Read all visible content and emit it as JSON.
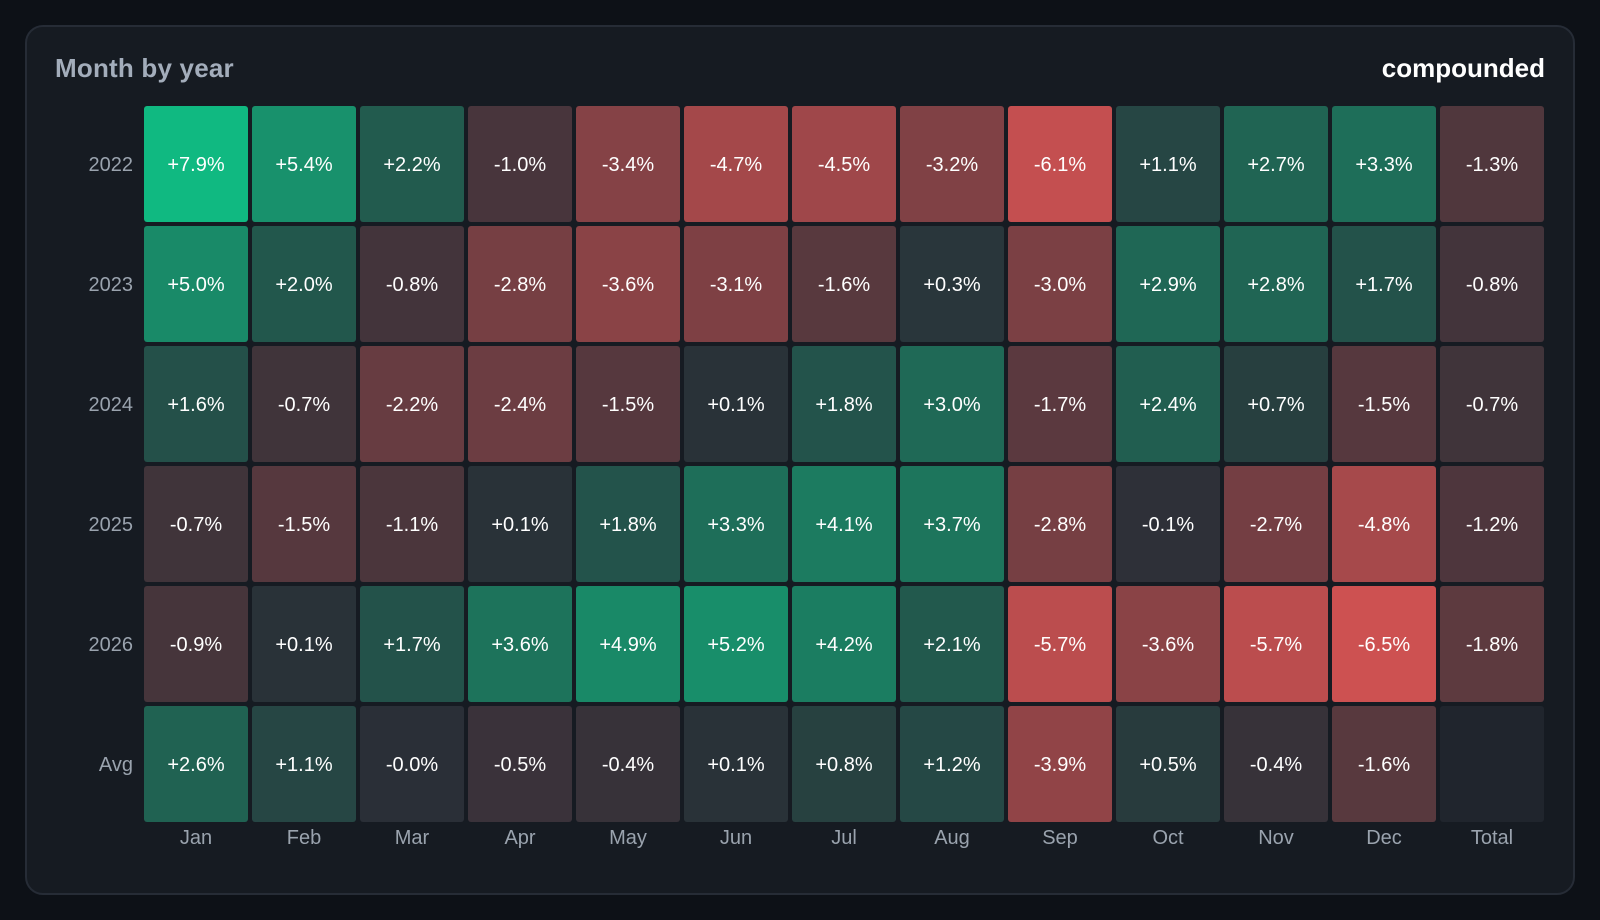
{
  "panel": {
    "title": "Month by year",
    "mode": "compounded"
  },
  "colors": {
    "background": "#0d1117",
    "panel": "#161b22",
    "neutral": "#2a2f37",
    "positive": "#10b981",
    "negative": "#cd5151",
    "text": "#ffffff",
    "axis_text": "#9aa3ae"
  },
  "chart_data": {
    "type": "heatmap",
    "title": "Month by year",
    "subtitle": "compounded",
    "columns": [
      "Jan",
      "Feb",
      "Mar",
      "Apr",
      "May",
      "Jun",
      "Jul",
      "Aug",
      "Sep",
      "Oct",
      "Nov",
      "Dec",
      "Total"
    ],
    "rows": [
      "2022",
      "2023",
      "2024",
      "2025",
      "2026",
      "Avg"
    ],
    "values": [
      [
        7.9,
        5.4,
        2.2,
        -1.0,
        -3.4,
        -4.7,
        -4.5,
        -3.2,
        -6.1,
        1.1,
        2.7,
        3.3,
        -1.3
      ],
      [
        5.0,
        2.0,
        -0.8,
        -2.8,
        -3.6,
        -3.1,
        -1.6,
        0.3,
        -3.0,
        2.9,
        2.8,
        1.7,
        -0.8
      ],
      [
        1.6,
        -0.7,
        -2.2,
        -2.4,
        -1.5,
        0.1,
        1.8,
        3.0,
        -1.7,
        2.4,
        0.7,
        -1.5,
        -0.7
      ],
      [
        -0.7,
        -1.5,
        -1.1,
        0.1,
        1.8,
        3.3,
        4.1,
        3.7,
        -2.8,
        -0.1,
        -2.7,
        -4.8,
        -1.2
      ],
      [
        -0.9,
        0.1,
        1.7,
        3.6,
        4.9,
        5.2,
        4.2,
        2.1,
        -5.7,
        -3.6,
        -5.7,
        -6.5,
        -1.8
      ],
      [
        2.6,
        1.1,
        -0.0,
        -0.5,
        -0.4,
        0.1,
        0.8,
        1.2,
        -3.9,
        0.5,
        -0.4,
        -1.6,
        null
      ]
    ],
    "labels": [
      [
        "+7.9%",
        "+5.4%",
        "+2.2%",
        "-1.0%",
        "-3.4%",
        "-4.7%",
        "-4.5%",
        "-3.2%",
        "-6.1%",
        "+1.1%",
        "+2.7%",
        "+3.3%",
        "-1.3%"
      ],
      [
        "+5.0%",
        "+2.0%",
        "-0.8%",
        "-2.8%",
        "-3.6%",
        "-3.1%",
        "-1.6%",
        "+0.3%",
        "-3.0%",
        "+2.9%",
        "+2.8%",
        "+1.7%",
        "-0.8%"
      ],
      [
        "+1.6%",
        "-0.7%",
        "-2.2%",
        "-2.4%",
        "-1.5%",
        "+0.1%",
        "+1.8%",
        "+3.0%",
        "-1.7%",
        "+2.4%",
        "+0.7%",
        "-1.5%",
        "-0.7%"
      ],
      [
        "-0.7%",
        "-1.5%",
        "-1.1%",
        "+0.1%",
        "+1.8%",
        "+3.3%",
        "+4.1%",
        "+3.7%",
        "-2.8%",
        "-0.1%",
        "-2.7%",
        "-4.8%",
        "-1.2%"
      ],
      [
        "-0.9%",
        "+0.1%",
        "+1.7%",
        "+3.6%",
        "+4.9%",
        "+5.2%",
        "+4.2%",
        "+2.1%",
        "-5.7%",
        "-3.6%",
        "-5.7%",
        "-6.5%",
        "-1.8%"
      ],
      [
        "+2.6%",
        "+1.1%",
        "-0.0%",
        "-0.5%",
        "-0.4%",
        "+0.1%",
        "+0.8%",
        "+1.2%",
        "-3.9%",
        "+0.5%",
        "-0.4%",
        "-1.6%",
        ""
      ]
    ],
    "color_scale": {
      "min": -6.5,
      "max": 7.9
    }
  }
}
